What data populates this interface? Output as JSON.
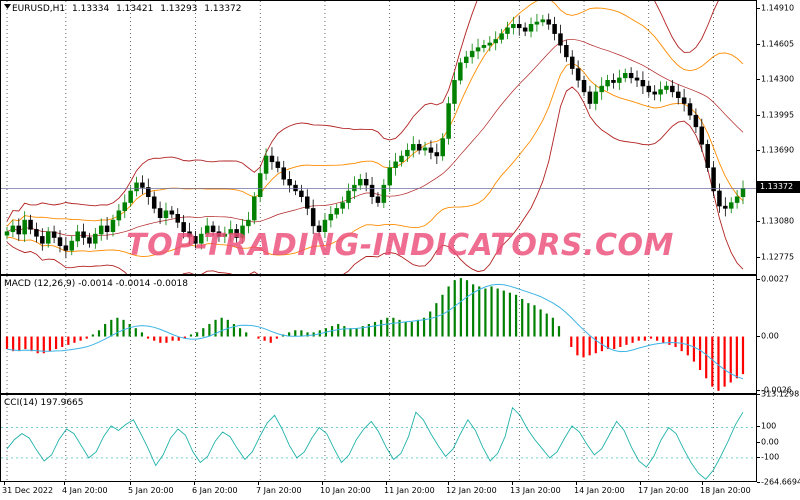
{
  "chart_header": {
    "symbol": "EURUSD,H1",
    "open": "1.13334",
    "high": "1.13421",
    "low": "1.13293",
    "close": "1.13372"
  },
  "price_axis": {
    "labels": [
      "1.14910",
      "1.14605",
      "1.14300",
      "1.13995",
      "1.13690",
      "1.13372",
      "1.13080",
      "1.12775"
    ],
    "current_price": "1.13372"
  },
  "macd": {
    "label": "MACD (12,26,9) -0.0014 -0.0014 -0.0018",
    "axis": [
      "0.0027",
      "0.00",
      "-0.0026"
    ]
  },
  "cci": {
    "label": "CCI(14) 197.9665",
    "axis": [
      "313.1298",
      "100",
      "0.00",
      "-100",
      "-264.6694"
    ]
  },
  "time_axis": [
    "31 Dec 2022",
    "4 Jan 20:00",
    "5 Jan 20:00",
    "6 Jan 20:00",
    "7 Jan 20:00",
    "10 Jan 20:00",
    "11 Jan 20:00",
    "12 Jan 20:00",
    "13 Jan 20:00",
    "14 Jan 20:00",
    "17 Jan 20:00",
    "18 Jan 20:00"
  ],
  "watermark": "TOP-TRADING-INDICATORS.COM",
  "colors": {
    "bull_candle": "#008000",
    "bear_candle": "#000000",
    "outer_band": "#b22222",
    "middle_band": "#ff8c00",
    "macd_up": "#008000",
    "macd_down": "#ff0000",
    "signal": "#3cb4e6",
    "cci": "#20b2aa"
  },
  "chart_data": [
    {
      "type": "candlestick",
      "title": "EURUSD,H1",
      "ylim": [
        1.1262,
        1.1498
      ],
      "close_series": [
        1.13,
        1.1305,
        1.1298,
        1.131,
        1.1302,
        1.1296,
        1.129,
        1.13,
        1.1295,
        1.1288,
        1.1284,
        1.1292,
        1.13,
        1.1295,
        1.129,
        1.1298,
        1.1305,
        1.13,
        1.131,
        1.1318,
        1.1325,
        1.1335,
        1.1342,
        1.1338,
        1.133,
        1.132,
        1.1312,
        1.1318,
        1.1315,
        1.1308,
        1.13,
        1.1296,
        1.129,
        1.1298,
        1.1305,
        1.13,
        1.1296,
        1.1298,
        1.1302,
        1.1295,
        1.1305,
        1.131,
        1.133,
        1.135,
        1.1365,
        1.136,
        1.1355,
        1.1345,
        1.134,
        1.1335,
        1.133,
        1.132,
        1.1305,
        1.13,
        1.131,
        1.1315,
        1.132,
        1.1325,
        1.1335,
        1.134,
        1.1345,
        1.134,
        1.133,
        1.1325,
        1.134,
        1.1355,
        1.136,
        1.1365,
        1.137,
        1.1375,
        1.137,
        1.1372,
        1.1368,
        1.1365,
        1.138,
        1.141,
        1.143,
        1.1445,
        1.145,
        1.1455,
        1.1458,
        1.146,
        1.1462,
        1.1465,
        1.147,
        1.1475,
        1.1478,
        1.1475,
        1.1472,
        1.1478,
        1.148,
        1.1482,
        1.1478,
        1.147,
        1.146,
        1.145,
        1.144,
        1.143,
        1.142,
        1.141,
        1.142,
        1.1425,
        1.143,
        1.1428,
        1.1432,
        1.1436,
        1.1432,
        1.143,
        1.1425,
        1.142,
        1.1418,
        1.1422,
        1.1425,
        1.142,
        1.1415,
        1.141,
        1.14,
        1.139,
        1.1375,
        1.1355,
        1.1335,
        1.1322,
        1.132,
        1.1325,
        1.133,
        1.1337
      ]
    },
    {
      "type": "bar",
      "title": "MACD (12,26,9)",
      "ylim": [
        -0.0028,
        0.0029
      ],
      "values_scaled_1e4": [
        -6,
        -7,
        -7,
        -6,
        -7,
        -8,
        -8,
        -7,
        -6,
        -5,
        -4,
        -3,
        -2,
        -1,
        1,
        3,
        6,
        8,
        9,
        8,
        6,
        4,
        2,
        -1,
        -2,
        -3,
        -3,
        -2,
        -2,
        -1,
        1,
        2,
        4,
        6,
        8,
        9,
        8,
        6,
        4,
        2,
        0,
        -1,
        -2,
        -3,
        -1,
        1,
        2,
        3,
        3,
        2,
        2,
        3,
        4,
        5,
        6,
        5,
        4,
        4,
        5,
        6,
        7,
        8,
        9,
        9,
        8,
        7,
        7,
        8,
        9,
        12,
        16,
        20,
        24,
        27,
        28,
        27,
        25,
        24,
        23,
        24,
        23,
        22,
        21,
        20,
        18,
        16,
        15,
        13,
        11,
        9,
        5,
        0,
        -5,
        -9,
        -10,
        -9,
        -8,
        -7,
        -6,
        -6,
        -5,
        -4,
        -3,
        -2,
        -2,
        -1,
        -2,
        -3,
        -4,
        -5,
        -7,
        -9,
        -12,
        -16,
        -20,
        -24,
        -26,
        -24,
        -22,
        -20,
        -18
      ]
    },
    {
      "type": "line",
      "title": "CCI(14)",
      "ylim": [
        -264.6694,
        313.1298
      ],
      "values": [
        -40,
        20,
        60,
        30,
        -50,
        -120,
        -80,
        20,
        90,
        60,
        -20,
        -100,
        -60,
        40,
        110,
        80,
        120,
        150,
        60,
        -40,
        -150,
        -80,
        30,
        90,
        50,
        -60,
        -130,
        -90,
        10,
        70,
        40,
        -40,
        -110,
        -60,
        40,
        130,
        180,
        90,
        -20,
        -100,
        -60,
        30,
        100,
        60,
        -40,
        -130,
        -80,
        20,
        90,
        140,
        70,
        -30,
        -110,
        -70,
        40,
        200,
        150,
        60,
        -20,
        -90,
        -40,
        60,
        150,
        80,
        -30,
        -120,
        -70,
        40,
        230,
        180,
        90,
        20,
        -40,
        -100,
        -60,
        30,
        110,
        70,
        -10,
        -80,
        -40,
        50,
        140,
        80,
        -30,
        -120,
        -160,
        -90,
        20,
        100,
        60,
        -40,
        -130,
        -200,
        -240,
        -180,
        -90,
        10,
        120,
        200
      ]
    }
  ]
}
